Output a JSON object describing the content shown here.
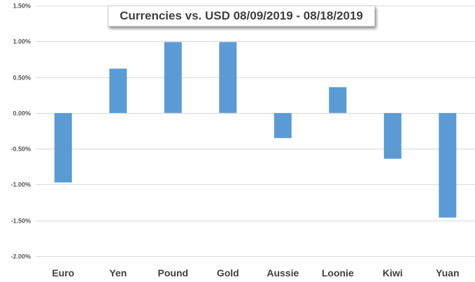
{
  "chart_data": {
    "type": "bar",
    "title": "Currencies vs. USD 08/09/2019 - 08/18/2019",
    "xlabel": "",
    "ylabel": "",
    "categories": [
      "Euro",
      "Yen",
      "Pound",
      "Gold",
      "Aussie",
      "Loonie",
      "Kiwi",
      "Yuan"
    ],
    "values": [
      -0.97,
      0.62,
      0.99,
      0.99,
      -0.35,
      0.36,
      -0.64,
      -1.46
    ],
    "value_unit": "%",
    "ylim": [
      -2.0,
      1.5
    ],
    "yticks": [
      1.5,
      1.0,
      0.5,
      0.0,
      -0.5,
      -1.0,
      -1.5,
      -2.0
    ],
    "ytick_labels": [
      "1.50%",
      "1.00%",
      "0.50%",
      "0.00%",
      "-0.50%",
      "-1.00%",
      "-1.50%",
      "-2.00%"
    ],
    "grid": true,
    "legend": "none",
    "bar_color": "#5b9bd5"
  }
}
